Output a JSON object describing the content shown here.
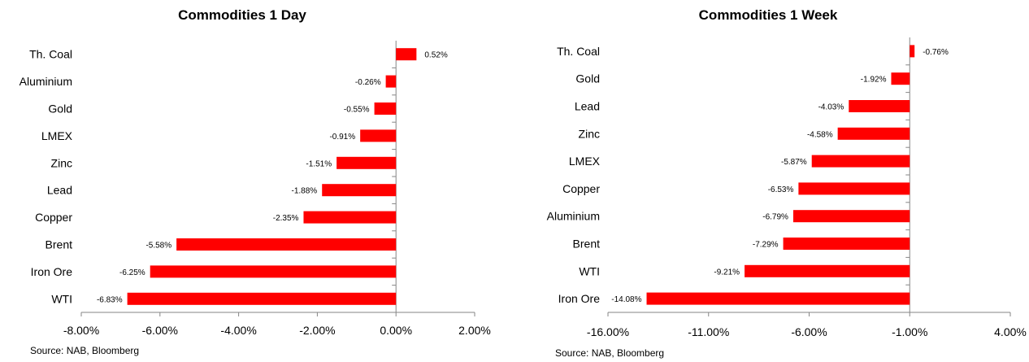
{
  "colors": {
    "bar": "#ff0000",
    "axis": "#868686",
    "text": "#000000"
  },
  "chart_data": [
    {
      "type": "bar",
      "orientation": "horizontal",
      "title": "Commodities 1 Day",
      "categories": [
        "Th. Coal",
        "Aluminium",
        "Gold",
        "LMEX",
        "Zinc",
        "Lead",
        "Copper",
        "Brent",
        "Iron Ore",
        "WTI"
      ],
      "values": [
        0.52,
        -0.26,
        -0.55,
        -0.91,
        -1.51,
        -1.88,
        -2.35,
        -5.58,
        -6.25,
        -6.83
      ],
      "value_labels": [
        "0.52%",
        "-0.26%",
        "-0.55%",
        "-0.91%",
        "-1.51%",
        "-1.88%",
        "-2.35%",
        "-5.58%",
        "-6.25%",
        "-6.83%"
      ],
      "xlim": [
        -8,
        2
      ],
      "xticks": [
        -8,
        -6,
        -4,
        -2,
        0,
        2
      ],
      "xtick_labels": [
        "-8.00%",
        "-6.00%",
        "-4.00%",
        "-2.00%",
        "0.00%",
        "2.00%"
      ],
      "grid": false,
      "legend": "none",
      "source": "Source: NAB, Bloomberg"
    },
    {
      "type": "bar",
      "orientation": "horizontal",
      "title": "Commodities 1 Week",
      "categories": [
        "Th. Coal",
        "Gold",
        "Lead",
        "Zinc",
        "LMEX",
        "Copper",
        "Aluminium",
        "Brent",
        "WTI",
        "Iron Ore"
      ],
      "values": [
        -0.76,
        -1.92,
        -4.03,
        -4.58,
        -5.87,
        -6.53,
        -6.79,
        -7.29,
        -9.21,
        -14.08
      ],
      "value_labels": [
        "-0.76%",
        "-1.92%",
        "-4.03%",
        "-4.58%",
        "-5.87%",
        "-6.53%",
        "-6.79%",
        "-7.29%",
        "-9.21%",
        "-14.08%"
      ],
      "xlim": [
        -16,
        4
      ],
      "xticks": [
        -16,
        -11,
        -6,
        -1,
        4
      ],
      "xtick_labels": [
        "-16.00%",
        "-11.00%",
        "-6.00%",
        "-1.00%",
        "4.00%"
      ],
      "value_axis_crosses_at": -1,
      "grid": false,
      "legend": "none",
      "source": "Source: NAB, Bloomberg"
    }
  ]
}
